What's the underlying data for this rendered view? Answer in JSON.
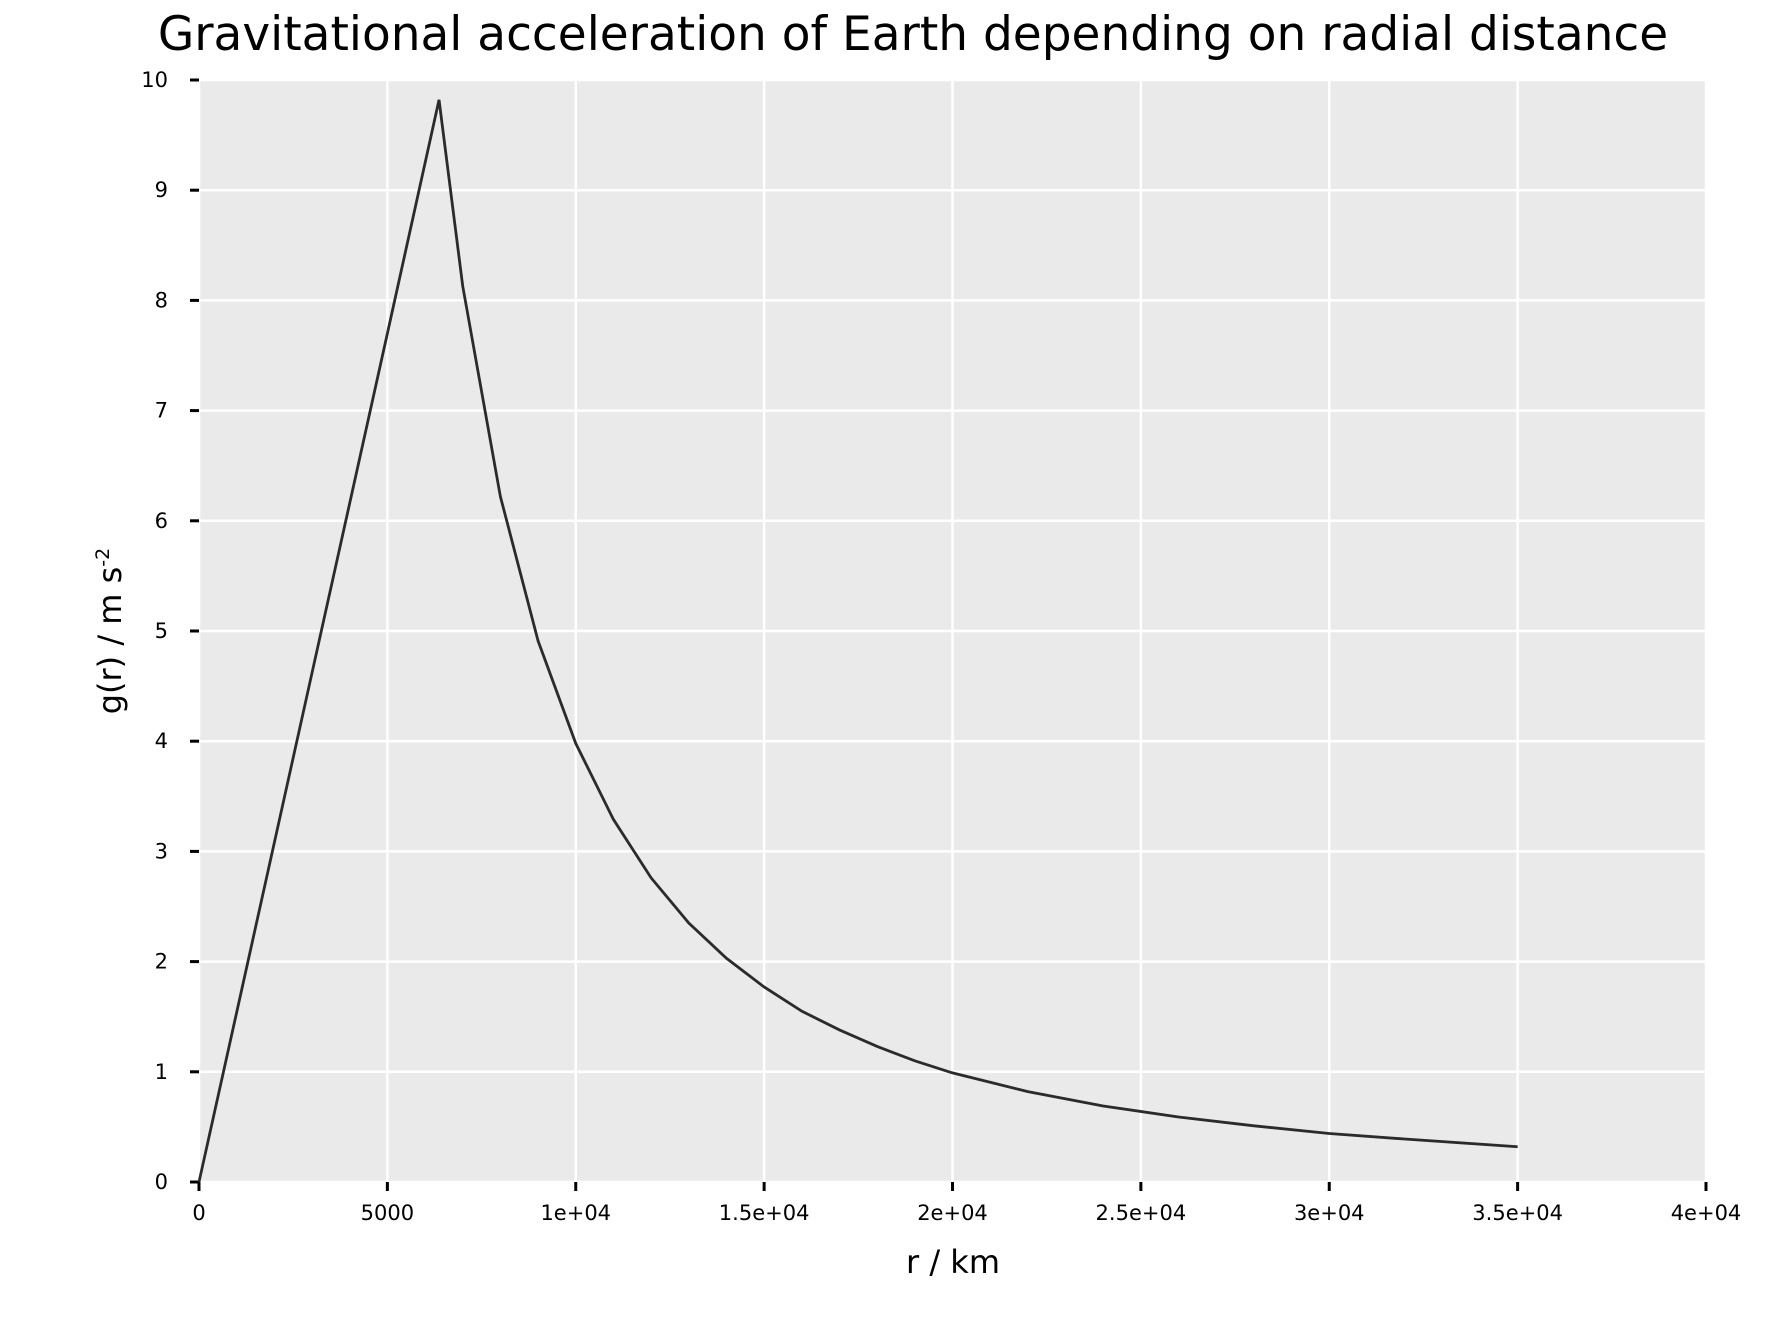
{
  "colors": {
    "background": "#ffffff",
    "plot_background": "#eaeaea",
    "grid": "#ffffff",
    "line": "#2b2b2b",
    "text": "#000000"
  },
  "chart_data": {
    "type": "line",
    "title": "Gravitational acceleration of Earth depending on radial distance",
    "xlabel": "r / km",
    "ylabel_main": "g(r) / m s",
    "ylabel_superscript": "-2",
    "xlim": [
      0,
      40000
    ],
    "ylim": [
      0,
      10
    ],
    "grid": true,
    "legend": false,
    "x_ticks": [
      {
        "value": 0,
        "label": "0"
      },
      {
        "value": 5000,
        "label": "5000"
      },
      {
        "value": 10000,
        "label": "1e+04"
      },
      {
        "value": 15000,
        "label": "1.5e+04"
      },
      {
        "value": 20000,
        "label": "2e+04"
      },
      {
        "value": 25000,
        "label": "2.5e+04"
      },
      {
        "value": 30000,
        "label": "3e+04"
      },
      {
        "value": 35000,
        "label": "3.5e+04"
      },
      {
        "value": 40000,
        "label": "4e+04"
      }
    ],
    "y_ticks": [
      {
        "value": 0,
        "label": "0"
      },
      {
        "value": 1,
        "label": "1"
      },
      {
        "value": 2,
        "label": "2"
      },
      {
        "value": 3,
        "label": "3"
      },
      {
        "value": 4,
        "label": "4"
      },
      {
        "value": 5,
        "label": "5"
      },
      {
        "value": 6,
        "label": "6"
      },
      {
        "value": 7,
        "label": "7"
      },
      {
        "value": 8,
        "label": "8"
      },
      {
        "value": 9,
        "label": "9"
      },
      {
        "value": 10,
        "label": "10"
      }
    ],
    "series": [
      {
        "x": [
          0,
          1000,
          2000,
          3000,
          4000,
          5000,
          6371,
          7000,
          8000,
          9000,
          10000,
          11000,
          12000,
          13000,
          14000,
          15000,
          16000,
          17000,
          18000,
          19000,
          20000,
          22000,
          24000,
          26000,
          28000,
          30000,
          32000,
          35000
        ],
        "y": [
          0,
          1.54,
          3.08,
          4.62,
          6.16,
          7.7,
          9.82,
          8.13,
          6.22,
          4.91,
          3.98,
          3.29,
          2.76,
          2.35,
          2.03,
          1.77,
          1.55,
          1.38,
          1.23,
          1.1,
          0.99,
          0.82,
          0.69,
          0.59,
          0.51,
          0.44,
          0.39,
          0.32
        ]
      }
    ]
  }
}
